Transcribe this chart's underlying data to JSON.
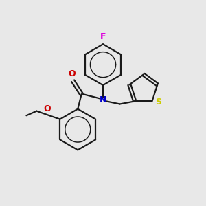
{
  "background_color": "#e8e8e8",
  "bond_color": "#1a1a1a",
  "atom_colors": {
    "F": "#dd00dd",
    "N": "#0000cc",
    "O_carbonyl": "#cc0000",
    "O_ethoxy": "#cc0000",
    "S": "#cccc00"
  },
  "figsize": [
    3.0,
    3.0
  ],
  "dpi": 100,
  "xlim": [
    0,
    10
  ],
  "ylim": [
    0,
    10
  ]
}
